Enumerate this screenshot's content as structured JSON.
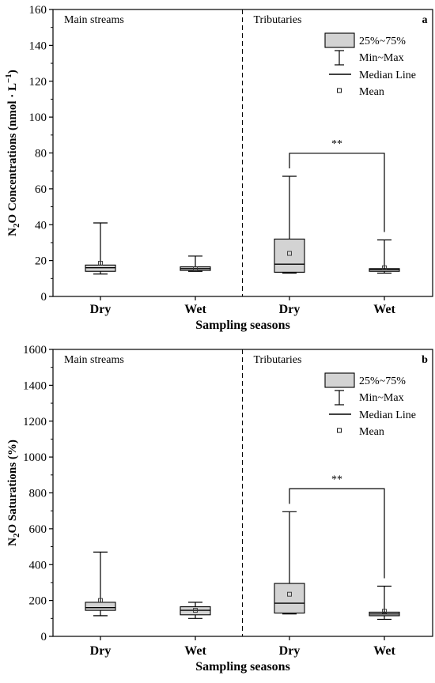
{
  "chart_data": [
    {
      "panel_label": "a",
      "type": "box",
      "ylabel": "N2O Concentrations (nmol · L⁻¹)",
      "ylabel_parts": {
        "n": "N",
        "sub": "2",
        "rest": "O Concentrations (nmol · L",
        "sup": "−1",
        "close": ")"
      },
      "xlabel": "Sampling seasons",
      "ylim": [
        0,
        160
      ],
      "yticks": [
        0,
        20,
        40,
        60,
        80,
        100,
        120,
        140,
        160
      ],
      "categories": [
        "Dry",
        "Wet",
        "Dry",
        "Wet"
      ],
      "regions": [
        "Main streams",
        "Tributaries"
      ],
      "legend": {
        "box": "25%~75%",
        "whisker": "Min~Max",
        "median": "Median Line",
        "mean": "Mean"
      },
      "significance": {
        "label": "**",
        "between": [
          2,
          3
        ]
      },
      "boxes": [
        {
          "category": "Dry",
          "min": 12.5,
          "q1": 14,
          "median": 16,
          "q3": 17.5,
          "max": 41,
          "mean": 18.5
        },
        {
          "category": "Wet",
          "min": 14,
          "q1": 14.5,
          "median": 15.5,
          "q3": 16.5,
          "max": 22.5,
          "mean": 15.5
        },
        {
          "category": "Dry",
          "min": 13,
          "q1": 13.5,
          "median": 18,
          "q3": 32,
          "max": 67,
          "mean": 24
        },
        {
          "category": "Wet",
          "min": 13,
          "q1": 14,
          "median": 15,
          "q3": 15.5,
          "max": 31.5,
          "mean": 16
        }
      ]
    },
    {
      "panel_label": "b",
      "type": "box",
      "ylabel": "N2O Saturations (%)",
      "ylabel_parts": {
        "n": "N",
        "sub": "2",
        "rest": "O Saturations (%)",
        "sup": "",
        "close": ""
      },
      "xlabel": "Sampling seasons",
      "ylim": [
        0,
        1600
      ],
      "yticks": [
        0,
        200,
        400,
        600,
        800,
        1000,
        1200,
        1400,
        1600
      ],
      "categories": [
        "Dry",
        "Wet",
        "Dry",
        "Wet"
      ],
      "regions": [
        "Main streams",
        "Tributaries"
      ],
      "legend": {
        "box": "25%~75%",
        "whisker": "Min~Max",
        "median": "Median Line",
        "mean": "Mean"
      },
      "significance": {
        "label": "**",
        "between": [
          2,
          3
        ]
      },
      "boxes": [
        {
          "category": "Dry",
          "min": 115,
          "q1": 145,
          "median": 160,
          "q3": 190,
          "max": 470,
          "mean": 200
        },
        {
          "category": "Wet",
          "min": 100,
          "q1": 120,
          "median": 145,
          "q3": 165,
          "max": 190,
          "mean": 145
        },
        {
          "category": "Dry",
          "min": 125,
          "q1": 130,
          "median": 185,
          "q3": 295,
          "max": 695,
          "mean": 235
        },
        {
          "category": "Wet",
          "min": 95,
          "q1": 115,
          "median": 125,
          "q3": 135,
          "max": 280,
          "mean": 140
        }
      ]
    }
  ]
}
